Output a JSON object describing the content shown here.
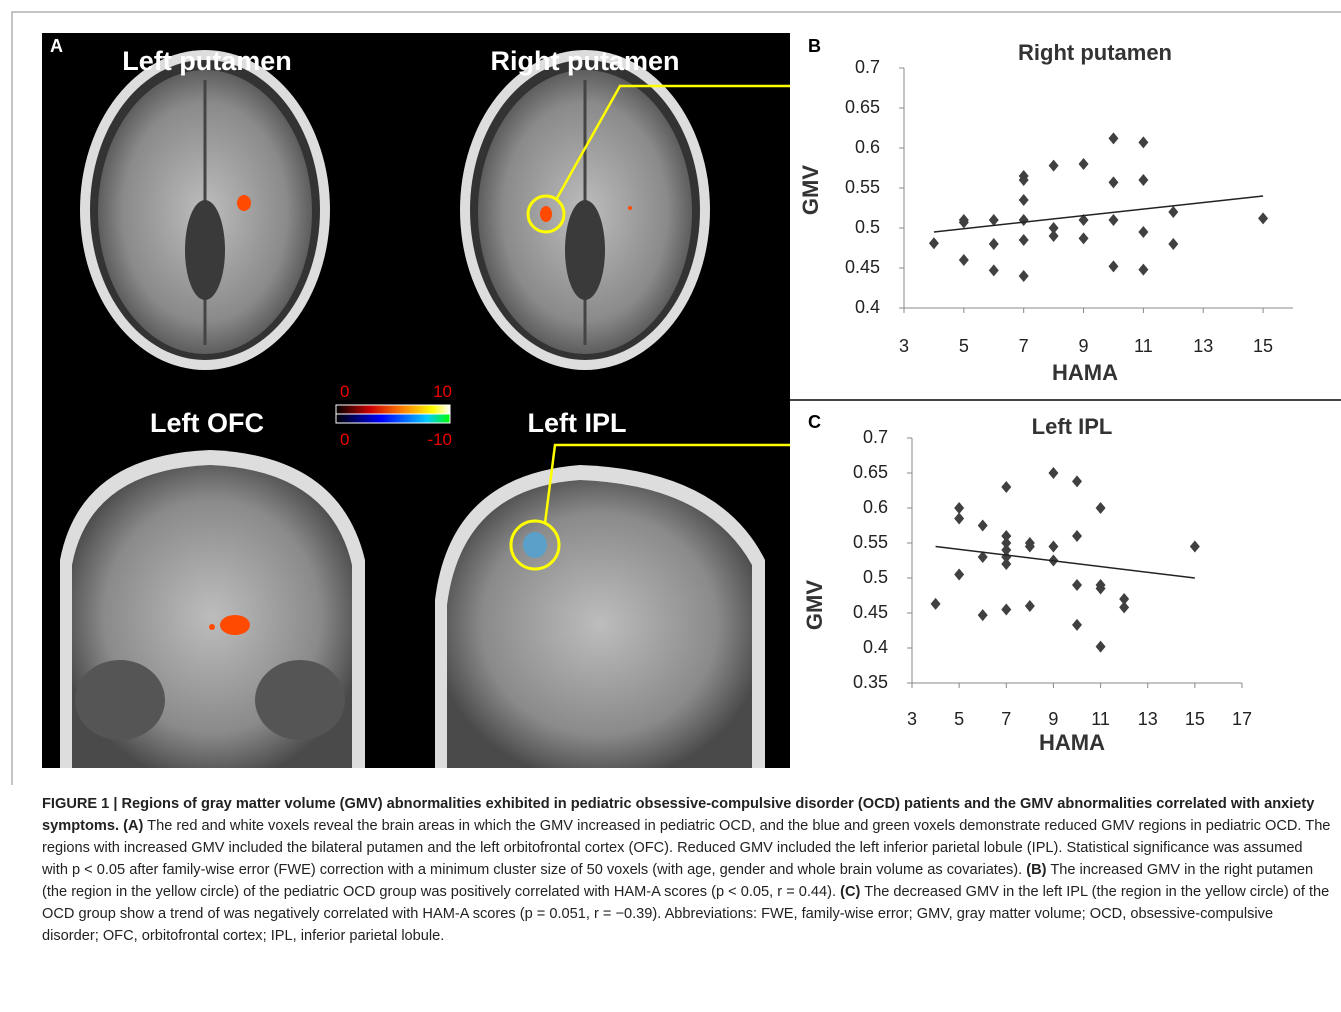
{
  "panel_a": {
    "letter": "A",
    "labels": [
      "Left putamen",
      "Right putamen",
      "Left OFC",
      "Left IPL"
    ],
    "colorbar": {
      "top_min": "0",
      "top_max": "10",
      "bottom_min": "0",
      "bottom_max": "-10"
    }
  },
  "chart_data": [
    {
      "type": "scatter",
      "letter": "B",
      "title": "Right putamen",
      "x_label": "HAMA",
      "y_label": "GMV",
      "color": "#404040",
      "x": [
        4,
        5,
        5,
        5,
        6,
        6,
        6,
        7,
        7,
        7,
        7,
        7,
        7,
        8,
        8,
        8,
        9,
        9,
        9,
        10,
        10,
        10,
        10,
        11,
        11,
        11,
        11,
        12,
        12,
        15
      ],
      "values": [
        0.481,
        0.507,
        0.51,
        0.46,
        0.51,
        0.48,
        0.447,
        0.565,
        0.56,
        0.535,
        0.51,
        0.485,
        0.44,
        0.578,
        0.5,
        0.49,
        0.58,
        0.51,
        0.487,
        0.612,
        0.557,
        0.51,
        0.452,
        0.607,
        0.56,
        0.495,
        0.448,
        0.52,
        0.48,
        0.512
      ],
      "trendline": {
        "x": [
          4,
          15
        ],
        "values": [
          0.495,
          0.54
        ]
      },
      "xlim": [
        3,
        16
      ],
      "xticks": [
        3,
        5,
        7,
        9,
        11,
        13,
        15
      ],
      "ylim": [
        0.4,
        0.7
      ],
      "yticks": [
        0.4,
        0.45,
        0.5,
        0.55,
        0.6,
        0.65,
        0.7
      ]
    },
    {
      "type": "scatter",
      "letter": "C",
      "title": "Left IPL",
      "x_label": "HAMA",
      "y_label": "GMV",
      "color": "#404040",
      "x": [
        4,
        5,
        5,
        5,
        6,
        6,
        6,
        7,
        7,
        7,
        7,
        7,
        7,
        7,
        8,
        8,
        8,
        9,
        9,
        9,
        10,
        10,
        10,
        10,
        11,
        11,
        11,
        11,
        12,
        12,
        15
      ],
      "values": [
        0.463,
        0.6,
        0.585,
        0.505,
        0.575,
        0.53,
        0.447,
        0.63,
        0.56,
        0.55,
        0.54,
        0.53,
        0.52,
        0.455,
        0.55,
        0.545,
        0.46,
        0.65,
        0.545,
        0.525,
        0.638,
        0.56,
        0.49,
        0.433,
        0.6,
        0.49,
        0.485,
        0.402,
        0.47,
        0.458,
        0.545
      ],
      "trendline": {
        "x": [
          4,
          15
        ],
        "values": [
          0.545,
          0.5
        ]
      },
      "xlim": [
        3,
        17
      ],
      "xticks": [
        3,
        5,
        7,
        9,
        11,
        13,
        15,
        17
      ],
      "ylim": [
        0.35,
        0.7
      ],
      "yticks": [
        0.35,
        0.4,
        0.45,
        0.5,
        0.55,
        0.6,
        0.65,
        0.7
      ]
    }
  ],
  "caption": {
    "title": "FIGURE 1 | Regions of gray matter volume (GMV) abnormalities exhibited in pediatric obsessive-compulsive disorder (OCD) patients and the GMV abnormalities correlated with anxiety symptoms.",
    "sections": [
      {
        "label": "(A)",
        "text": "The red and white voxels reveal the brain areas in which the GMV increased in pediatric OCD, and the blue and green voxels demonstrate reduced GMV regions in pediatric OCD. The regions with increased GMV included the bilateral putamen and the left orbitofrontal cortex (OFC). Reduced GMV included the left inferior parietal lobule (IPL). Statistical significance was assumed with p < 0.05 after family-wise error (FWE) correction with a minimum cluster size of 50 voxels (with age, gender and whole brain volume as covariates)."
      },
      {
        "label": "(B)",
        "text": "The increased GMV in the right putamen (the region in the yellow circle) of the pediatric OCD group was positively correlated with HAM-A scores (p < 0.05, r = 0.44)."
      },
      {
        "label": "(C)",
        "text": "The decreased GMV in the left IPL (the region in the yellow circle) of the OCD group show a trend of was negatively correlated with HAM-A scores (p = 0.051, r = −0.39). Abbreviations: FWE, family-wise error; GMV, gray matter volume; OCD, obsessive-compulsive disorder; OFC, orbitofrontal cortex; IPL, inferior parietal lobule."
      }
    ]
  }
}
